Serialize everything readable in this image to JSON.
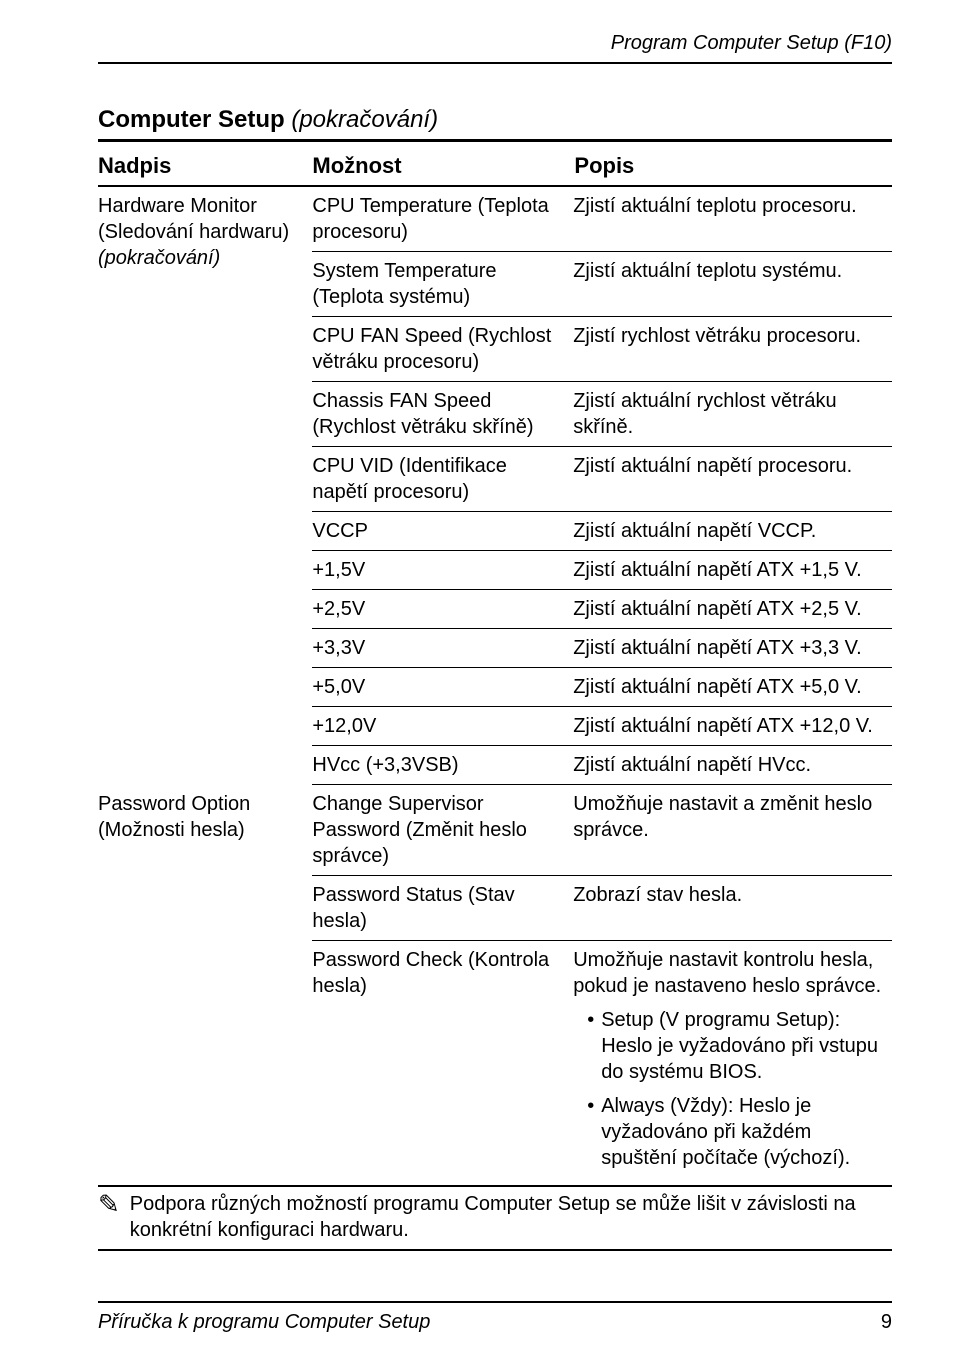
{
  "pageHeader": "Program Computer Setup (F10)",
  "tableTitleMain": "Computer Setup",
  "tableTitleCont": "(pokračování)",
  "head": {
    "c1": "Nadpis",
    "c2": "Možnost",
    "c3": "Popis"
  },
  "hw": {
    "nadpis_l1": "Hardware Monitor",
    "nadpis_l2": "(Sledování hardwaru)",
    "nadpis_l3": "(pokračování)",
    "rows": [
      {
        "m": "CPU Temperature (Teplota procesoru)",
        "p": "Zjistí aktuální teplotu procesoru."
      },
      {
        "m": "System Temperature (Teplota systému)",
        "p": "Zjistí aktuální teplotu systému."
      },
      {
        "m": "CPU FAN Speed (Rychlost větráku procesoru)",
        "p": "Zjistí rychlost větráku procesoru."
      },
      {
        "m": "Chassis FAN Speed (Rychlost větráku skříně)",
        "p": "Zjistí aktuální rychlost větráku skříně."
      },
      {
        "m": "CPU VID (Identifikace napětí procesoru)",
        "p": "Zjistí aktuální napětí procesoru."
      },
      {
        "m": "VCCP",
        "p": "Zjistí aktuální napětí VCCP."
      },
      {
        "m": "+1,5V",
        "p": "Zjistí aktuální napětí ATX +1,5 V."
      },
      {
        "m": "+2,5V",
        "p": "Zjistí aktuální napětí ATX +2,5 V."
      },
      {
        "m": "+3,3V",
        "p": "Zjistí aktuální napětí ATX +3,3 V."
      },
      {
        "m": "+5,0V",
        "p": "Zjistí aktuální napětí ATX +5,0 V."
      },
      {
        "m": "+12,0V",
        "p": "Zjistí aktuální napětí ATX +12,0 V."
      },
      {
        "m": "HVcc (+3,3VSB)",
        "p": "Zjistí aktuální napětí HVcc."
      }
    ]
  },
  "pw": {
    "nadpis_l1": "Password Option",
    "nadpis_l2": "(Možnosti hesla)",
    "r1m": "Change Supervisor Password (Změnit heslo správce)",
    "r1p": "Umožňuje nastavit a změnit heslo správce.",
    "r2m": "Password Status (Stav hesla)",
    "r2p": "Zobrazí stav hesla.",
    "r3m": "Password Check (Kontrola hesla)",
    "r3p": "Umožňuje nastavit kontrolu hesla, pokud je nastaveno heslo správce.",
    "r3b1": "Setup (V programu Setup): Heslo je vyžadováno při vstupu do systému BIOS.",
    "r3b2": "Always (Vždy): Heslo je vyžadováno při každém spuštění počítače (výchozí)."
  },
  "footnote": "Podpora různých možností programu Computer Setup se může lišit v závislosti na konkrétní konfiguraci hardwaru.",
  "footerLeft": "Příručka k programu Computer Setup",
  "footerRight": "9"
}
